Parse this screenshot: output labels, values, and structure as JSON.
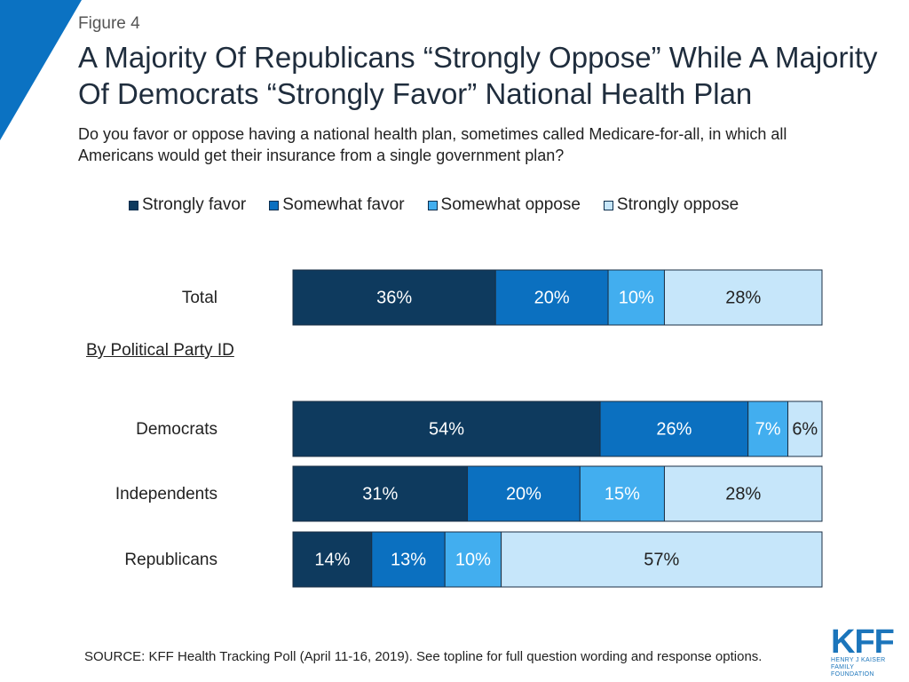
{
  "figure_label": "Figure 4",
  "title": "A Majority Of Republicans “Strongly Oppose” While A Majority Of Democrats “Strongly Favor” National Health Plan",
  "subtitle": "Do you favor or oppose having a national health plan, sometimes called Medicare-for-all, in which all Americans would get their insurance from a single government plan?",
  "group_label": "By Political Party ID",
  "source": "SOURCE: KFF Health Tracking Poll (April 11-16, 2019). See topline for full question wording and response options.",
  "logo": {
    "mark": "KFF",
    "line1": "HENRY J KAISER",
    "line2": "FAMILY FOUNDATION"
  },
  "colors": {
    "strongly_favor": "#0e3a5e",
    "somewhat_favor": "#0b70c0",
    "somewhat_oppose": "#42aeef",
    "strongly_oppose": "#c6e6fa",
    "accent": "#0b72c2"
  },
  "chart_data": {
    "type": "bar",
    "orientation": "horizontal",
    "stacked": true,
    "normalized": true,
    "title": "A Majority Of Republicans “Strongly Oppose” While A Majority Of Democrats “Strongly Favor” National Health Plan",
    "categories": [
      "Total",
      "Democrats",
      "Independents",
      "Republicans"
    ],
    "series": [
      {
        "name": "Strongly favor",
        "values": [
          36,
          54,
          31,
          14
        ],
        "labels": [
          "36%",
          "54%",
          "31%",
          "14%"
        ]
      },
      {
        "name": "Somewhat favor",
        "values": [
          20,
          26,
          20,
          13
        ],
        "labels": [
          "20%",
          "26%",
          "20%",
          "13%"
        ]
      },
      {
        "name": "Somewhat oppose",
        "values": [
          10,
          7,
          15,
          10
        ],
        "labels": [
          "10%",
          "7%",
          "15%",
          "10%"
        ]
      },
      {
        "name": "Strongly oppose",
        "values": [
          28,
          6,
          28,
          57
        ],
        "labels": [
          "28%",
          "6%",
          "28%",
          "57%"
        ]
      }
    ],
    "legend_position": "top",
    "unit": "%"
  }
}
